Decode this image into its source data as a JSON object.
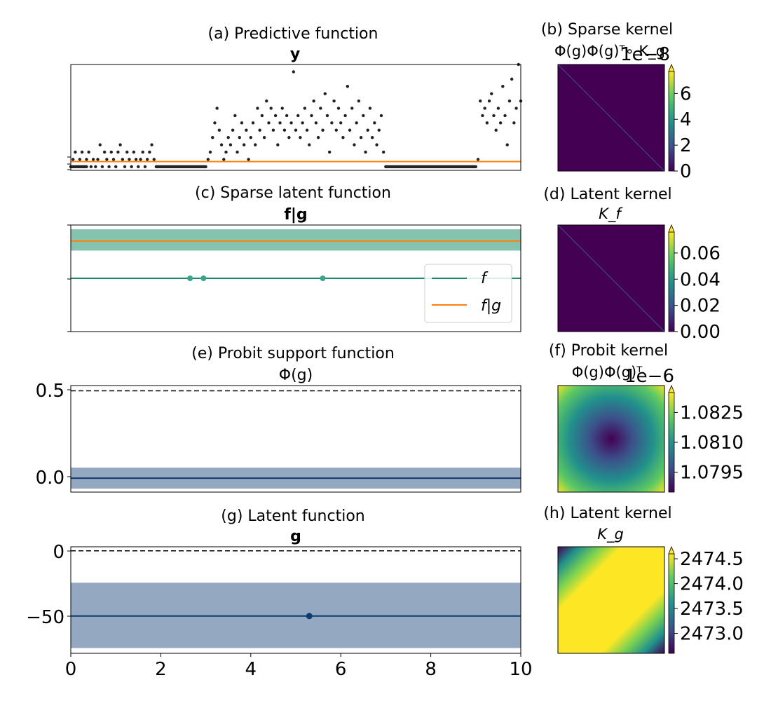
{
  "panels": {
    "a": {
      "title": "(a) Predictive function",
      "subtitle": "y"
    },
    "b": {
      "title": "(b) Sparse kernel",
      "subtitle": "Φ(g)Φ(g)ᵀ∘ K_g",
      "cbar_ticks": [
        "0",
        "2",
        "4",
        "6"
      ],
      "cbar_offset": "1e−8"
    },
    "c": {
      "title": "(c) Sparse latent function",
      "subtitle": "f|g",
      "legend": [
        {
          "label": "f",
          "color": "#1a8a6a"
        },
        {
          "label": "f|g",
          "color": "#ff7f0e"
        }
      ]
    },
    "d": {
      "title": "(d) Latent kernel",
      "subtitle": "K_f",
      "cbar_ticks": [
        "0.00",
        "0.02",
        "0.04",
        "0.06"
      ]
    },
    "e": {
      "title": "(e) Probit support function",
      "subtitle": "Φ(g)",
      "yticks": [
        "0.5",
        "0.0"
      ]
    },
    "f": {
      "title": "(f) Probit kernel",
      "subtitle": "Φ(g)Φ(g)ᵀ",
      "cbar_ticks": [
        "1.0825",
        "1.0810",
        "1.0795"
      ],
      "cbar_offset": "1e−6"
    },
    "g": {
      "title": "(g) Latent function",
      "subtitle": "g",
      "yticks": [
        "0",
        "−50"
      ]
    },
    "h": {
      "title": "(h) Latent kernel",
      "subtitle": "K_g",
      "cbar_ticks": [
        "2474.5",
        "2474.0",
        "2473.5",
        "2473.0"
      ]
    }
  },
  "xticks": [
    "0",
    "2",
    "4",
    "6",
    "8",
    "10"
  ],
  "colors": {
    "scatter": "#222222",
    "orange": "#ff7f0e",
    "green": "#1a8a6a",
    "green_band": "#86c3ae",
    "blue": "#0d3b6e",
    "blue_band": "#94a8c2",
    "viridis_dark": "#440154"
  },
  "chart_data": [
    {
      "type": "scatter",
      "panel": "a",
      "title": "(a) Predictive function",
      "subtitle": "y",
      "xlim": [
        0,
        10
      ],
      "ylim": [
        -0.5,
        14
      ],
      "zero_runs": [
        [
          0,
          0.35
        ],
        [
          1.9,
          3.0
        ],
        [
          7.0,
          9.0
        ]
      ],
      "points": [
        [
          0.05,
          1
        ],
        [
          0.1,
          2
        ],
        [
          0.15,
          0
        ],
        [
          0.2,
          1
        ],
        [
          0.25,
          2
        ],
        [
          0.3,
          0
        ],
        [
          0.35,
          1
        ],
        [
          0.4,
          2
        ],
        [
          0.45,
          0
        ],
        [
          0.5,
          1
        ],
        [
          0.55,
          0
        ],
        [
          0.6,
          1
        ],
        [
          0.65,
          3
        ],
        [
          0.7,
          0
        ],
        [
          0.75,
          2
        ],
        [
          0.8,
          1
        ],
        [
          0.85,
          0
        ],
        [
          0.9,
          2
        ],
        [
          0.95,
          1
        ],
        [
          1.0,
          0
        ],
        [
          1.05,
          2
        ],
        [
          1.1,
          3
        ],
        [
          1.15,
          1
        ],
        [
          1.2,
          0
        ],
        [
          1.25,
          2
        ],
        [
          1.3,
          1
        ],
        [
          1.35,
          0
        ],
        [
          1.4,
          2
        ],
        [
          1.45,
          1
        ],
        [
          1.5,
          0
        ],
        [
          1.55,
          1
        ],
        [
          1.6,
          2
        ],
        [
          1.65,
          0
        ],
        [
          1.7,
          1
        ],
        [
          1.75,
          2
        ],
        [
          1.8,
          3
        ],
        [
          1.85,
          1
        ],
        [
          1.9,
          0
        ],
        [
          3.05,
          1
        ],
        [
          3.1,
          2
        ],
        [
          3.15,
          4
        ],
        [
          3.2,
          6
        ],
        [
          3.25,
          8
        ],
        [
          3.3,
          5
        ],
        [
          3.35,
          3
        ],
        [
          3.4,
          1
        ],
        [
          3.45,
          2
        ],
        [
          3.5,
          4
        ],
        [
          3.55,
          3
        ],
        [
          3.6,
          5
        ],
        [
          3.65,
          7
        ],
        [
          3.7,
          2
        ],
        [
          3.75,
          4
        ],
        [
          3.8,
          6
        ],
        [
          3.85,
          3
        ],
        [
          3.9,
          5
        ],
        [
          3.95,
          1
        ],
        [
          4.0,
          4
        ],
        [
          4.05,
          6
        ],
        [
          4.1,
          3
        ],
        [
          4.15,
          8
        ],
        [
          4.2,
          5
        ],
        [
          4.25,
          7
        ],
        [
          4.3,
          4
        ],
        [
          4.35,
          9
        ],
        [
          4.4,
          6
        ],
        [
          4.45,
          8
        ],
        [
          4.5,
          5
        ],
        [
          4.55,
          7
        ],
        [
          4.6,
          3
        ],
        [
          4.65,
          6
        ],
        [
          4.7,
          8
        ],
        [
          4.75,
          5
        ],
        [
          4.8,
          7
        ],
        [
          4.85,
          4
        ],
        [
          4.9,
          6
        ],
        [
          4.95,
          13
        ],
        [
          5.0,
          5
        ],
        [
          5.05,
          7
        ],
        [
          5.1,
          4
        ],
        [
          5.15,
          6
        ],
        [
          5.2,
          8
        ],
        [
          5.25,
          5
        ],
        [
          5.3,
          3
        ],
        [
          5.35,
          7
        ],
        [
          5.4,
          9
        ],
        [
          5.45,
          6
        ],
        [
          5.5,
          4
        ],
        [
          5.55,
          8
        ],
        [
          5.6,
          5
        ],
        [
          5.65,
          10
        ],
        [
          5.7,
          7
        ],
        [
          5.75,
          2
        ],
        [
          5.8,
          6
        ],
        [
          5.85,
          9
        ],
        [
          5.9,
          5
        ],
        [
          5.95,
          8
        ],
        [
          6.0,
          6
        ],
        [
          6.05,
          4
        ],
        [
          6.1,
          7
        ],
        [
          6.15,
          11
        ],
        [
          6.2,
          5
        ],
        [
          6.25,
          8
        ],
        [
          6.3,
          3
        ],
        [
          6.35,
          6
        ],
        [
          6.4,
          9
        ],
        [
          6.45,
          4
        ],
        [
          6.5,
          7
        ],
        [
          6.55,
          2
        ],
        [
          6.6,
          5
        ],
        [
          6.65,
          8
        ],
        [
          6.7,
          4
        ],
        [
          6.75,
          6
        ],
        [
          6.8,
          3
        ],
        [
          6.85,
          5
        ],
        [
          6.9,
          7
        ],
        [
          6.95,
          2
        ],
        [
          7.0,
          0
        ],
        [
          9.05,
          1
        ],
        [
          9.1,
          9
        ],
        [
          9.15,
          7
        ],
        [
          9.2,
          8
        ],
        [
          9.25,
          6
        ],
        [
          9.3,
          9
        ],
        [
          9.35,
          10
        ],
        [
          9.4,
          7
        ],
        [
          9.45,
          5
        ],
        [
          9.5,
          8
        ],
        [
          9.55,
          6
        ],
        [
          9.6,
          11
        ],
        [
          9.65,
          7
        ],
        [
          9.7,
          3
        ],
        [
          9.75,
          9
        ],
        [
          9.8,
          12
        ],
        [
          9.85,
          6
        ],
        [
          9.9,
          8
        ],
        [
          9.95,
          14
        ],
        [
          10.0,
          9
        ]
      ],
      "series": [
        {
          "name": "f|g",
          "x": [
            0,
            10
          ],
          "y": [
            0.7,
            0.7
          ],
          "color": "#ff7f0e"
        }
      ]
    },
    {
      "type": "line",
      "panel": "c",
      "title": "(c) Sparse latent function",
      "subtitle": "f|g",
      "xlim": [
        0,
        10
      ],
      "ylim": [
        -1,
        1
      ],
      "series": [
        {
          "name": "f",
          "x": [
            0,
            10
          ],
          "y": [
            0,
            0
          ],
          "color": "#1a8a6a"
        },
        {
          "name": "f|g",
          "x": [
            0,
            10
          ],
          "y": [
            0.7,
            0.7
          ],
          "color": "#ff7f0e"
        }
      ],
      "band": {
        "lower": 0.52,
        "upper": 0.92
      },
      "inducing_points": [
        2.65,
        2.95,
        5.6
      ],
      "legend": "right"
    },
    {
      "type": "line",
      "panel": "e",
      "title": "(e) Probit support function",
      "subtitle": "Φ(g)",
      "xlim": [
        0,
        10
      ],
      "ylim": [
        -0.08,
        0.53
      ],
      "yticks": [
        0.5,
        0.0
      ],
      "series": [
        {
          "name": "Φ(g)",
          "x": [
            0,
            10
          ],
          "y": [
            0,
            0
          ],
          "color": "#0d3b6e"
        },
        {
          "name": "reference",
          "x": [
            0,
            10
          ],
          "y": [
            0.5,
            0.5
          ],
          "dashed": true
        }
      ],
      "band": {
        "lower": -0.06,
        "upper": 0.06
      }
    },
    {
      "type": "line",
      "panel": "g",
      "title": "(g) Latent function",
      "subtitle": "g",
      "xlim": [
        0,
        10
      ],
      "ylim": [
        -77,
        3
      ],
      "yticks": [
        0,
        -50
      ],
      "xticks": [
        0,
        2,
        4,
        6,
        8,
        10
      ],
      "series": [
        {
          "name": "g",
          "x": [
            0,
            10
          ],
          "y": [
            -49,
            -49
          ],
          "color": "#0d3b6e"
        },
        {
          "name": "reference",
          "x": [
            0,
            10
          ],
          "y": [
            0,
            0
          ],
          "dashed": true
        }
      ],
      "band": {
        "lower": -73,
        "upper": -24
      },
      "inducing_points": [
        5.3
      ]
    },
    {
      "type": "heatmap",
      "panel": "b",
      "title": "(b) Sparse kernel",
      "pattern": "diagonal",
      "colorbar": {
        "ticks": [
          0,
          2,
          4,
          6
        ],
        "offset": "1e−8",
        "lim": [
          0,
          7.7
        ]
      }
    },
    {
      "type": "heatmap",
      "panel": "d",
      "title": "(d) Latent kernel",
      "pattern": "diagonal",
      "colorbar": {
        "ticks": [
          0.0,
          0.02,
          0.04,
          0.06
        ],
        "lim": [
          0,
          0.076
        ]
      }
    },
    {
      "type": "heatmap",
      "panel": "f",
      "title": "(f) Probit kernel",
      "pattern": "radial",
      "colorbar": {
        "ticks": [
          1.0825,
          1.081,
          1.0795
        ],
        "offset": "1e−6",
        "lim": [
          1.0785,
          1.0835
        ]
      }
    },
    {
      "type": "heatmap",
      "panel": "h",
      "title": "(h) Latent kernel",
      "pattern": "band",
      "colorbar": {
        "ticks": [
          2474.5,
          2474.0,
          2473.5,
          2473.0
        ],
        "lim": [
          2472.6,
          2474.6
        ]
      }
    }
  ]
}
